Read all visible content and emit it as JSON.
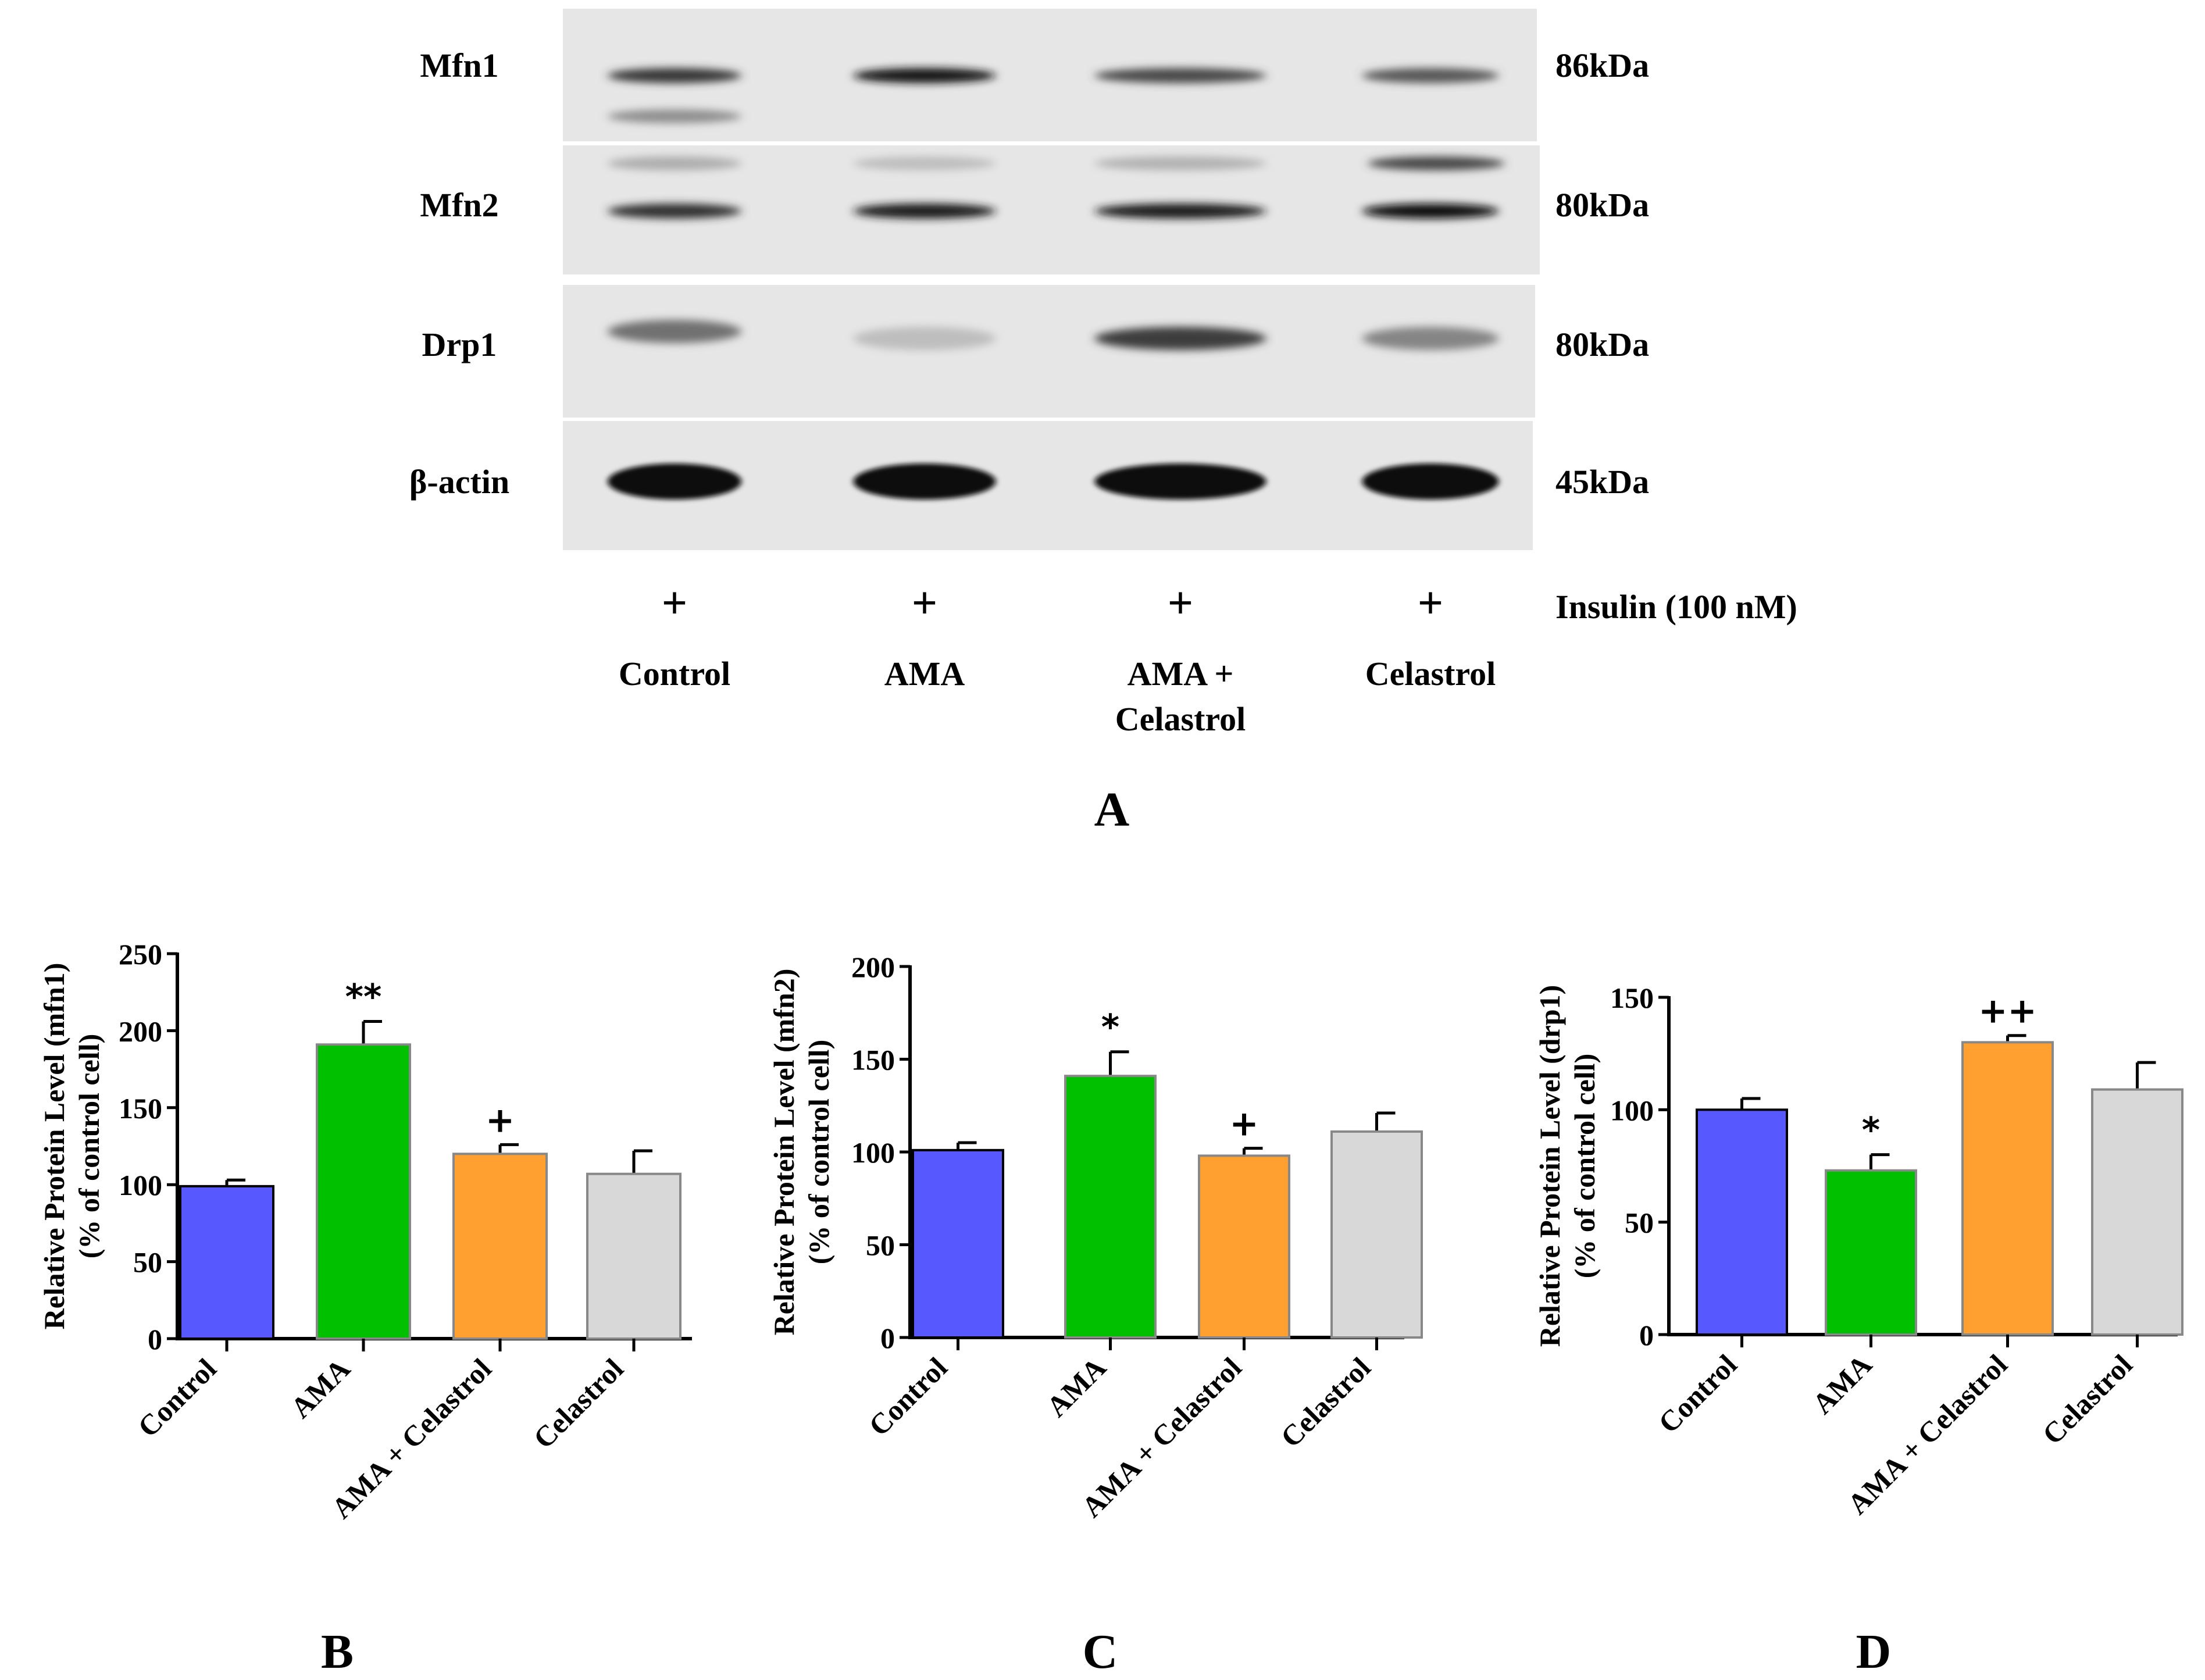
{
  "blot": {
    "proteins": [
      {
        "name": "Mfn1",
        "size": "86kDa",
        "intensities": [
          0.78,
          0.96,
          0.7,
          0.62
        ],
        "lower_band": [
          0.35,
          0,
          0,
          0
        ],
        "upper_band": [
          0,
          0,
          0,
          0
        ]
      },
      {
        "name": "Mfn2",
        "size": "80kDa",
        "intensities": [
          0.8,
          0.92,
          0.9,
          0.98
        ],
        "lower_band": [
          0,
          0,
          0,
          0
        ],
        "upper_band": [
          0.2,
          0.12,
          0.18,
          0.7
        ]
      },
      {
        "name": "Drp1",
        "size": "80kDa",
        "intensities": [
          0.5,
          0.12,
          0.75,
          0.4
        ],
        "lower_band": [
          0,
          0,
          0,
          0
        ],
        "upper_band": [
          0,
          0,
          0,
          0
        ]
      },
      {
        "name": "β-actin",
        "size": "45kDa",
        "intensities": [
          1,
          1,
          1,
          1
        ],
        "lower_band": [
          0,
          0,
          0,
          0
        ],
        "upper_band": [
          0,
          0,
          0,
          0
        ]
      }
    ],
    "treatment_symbol": "+",
    "treatment_label": "Insulin (100 nM)",
    "lanes": [
      [
        "Control"
      ],
      [
        "AMA"
      ],
      [
        "AMA +",
        "Celastrol"
      ],
      [
        "Celastrol"
      ]
    ],
    "panel_label": "A"
  },
  "chart_data": [
    {
      "type": "bar",
      "panel_label": "B",
      "categories": [
        "Control",
        "AMA",
        "AMA + Celastrol",
        "Celastrol"
      ],
      "values": [
        99,
        191,
        120,
        107
      ],
      "errors": [
        4,
        15,
        6,
        15
      ],
      "annotations": [
        "",
        "**",
        "+",
        ""
      ],
      "colors": [
        "#5858ff",
        "#00c000",
        "#ffa030",
        "#d8d8d8"
      ],
      "ylabel": [
        "Relative Protein  Level (mfn1)",
        "(% of control cell)"
      ],
      "ylim": [
        0,
        250
      ],
      "yticks": [
        0,
        50,
        100,
        150,
        200,
        250
      ]
    },
    {
      "type": "bar",
      "panel_label": "C",
      "categories": [
        "Control",
        "AMA",
        "AMA + Celastrol",
        "Celastrol"
      ],
      "values": [
        101,
        141,
        98,
        111
      ],
      "errors": [
        4,
        13,
        4,
        10
      ],
      "annotations": [
        "",
        "*",
        "+",
        ""
      ],
      "colors": [
        "#5858ff",
        "#00c000",
        "#ffa030",
        "#d8d8d8"
      ],
      "ylabel": [
        "Relative Protein Level (mfn2)",
        "(% of control cell)"
      ],
      "ylim": [
        0,
        200
      ],
      "yticks": [
        0,
        50,
        100,
        150,
        200
      ]
    },
    {
      "type": "bar",
      "panel_label": "D",
      "categories": [
        "Control",
        "AMA",
        "AMA + Celastrol",
        "Celastrol"
      ],
      "values": [
        100,
        73,
        130,
        109
      ],
      "errors": [
        5,
        7,
        3,
        12
      ],
      "annotations": [
        "",
        "*",
        "++",
        ""
      ],
      "colors": [
        "#5858ff",
        "#00c000",
        "#ffa030",
        "#d8d8d8"
      ],
      "ylabel": [
        "Relative Protein Level (drp1)",
        "(% of control cell)"
      ],
      "ylim": [
        0,
        150
      ],
      "yticks": [
        0,
        50,
        100,
        150
      ]
    }
  ]
}
